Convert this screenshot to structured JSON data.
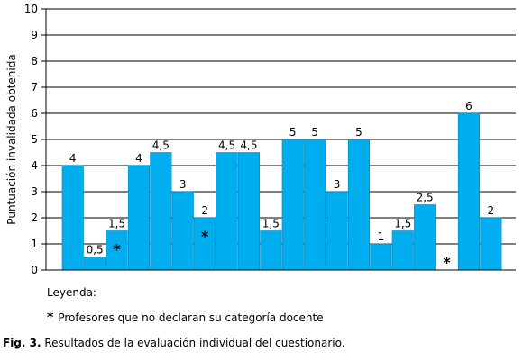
{
  "chart_data": {
    "type": "bar",
    "ylabel": "Puntuación invalidada obtenida",
    "ylim": [
      0,
      10
    ],
    "yticks": [
      "0",
      "1",
      "2",
      "3",
      "4",
      "5",
      "6",
      "7",
      "8",
      "9",
      "10"
    ],
    "grid": true,
    "bar_color": "#00AEEF",
    "bar_outline": "#0088BB",
    "values": [
      4,
      0.5,
      1.5,
      4,
      4.5,
      3,
      2,
      4.5,
      4.5,
      1.5,
      5,
      5,
      3,
      5,
      1,
      1.5,
      2.5,
      null,
      6,
      2
    ],
    "data_labels": [
      "4",
      "0,5",
      "1,5",
      "4",
      "4,5",
      "3",
      "2",
      "4,5",
      "4,5",
      "1,5",
      "5",
      "5",
      "3",
      "5",
      "1",
      "1,5",
      "2,5",
      "",
      "6",
      "2"
    ],
    "marked_indices": [
      2,
      6,
      17
    ],
    "marker_symbol": "*"
  },
  "legend": {
    "title": "Leyenda:",
    "symbol": "*",
    "text": "Profesores que no declaran su categoría docente"
  },
  "caption": {
    "label": "Fig. 3.",
    "text": " Resultados de la evaluación individual del cuestionario."
  }
}
